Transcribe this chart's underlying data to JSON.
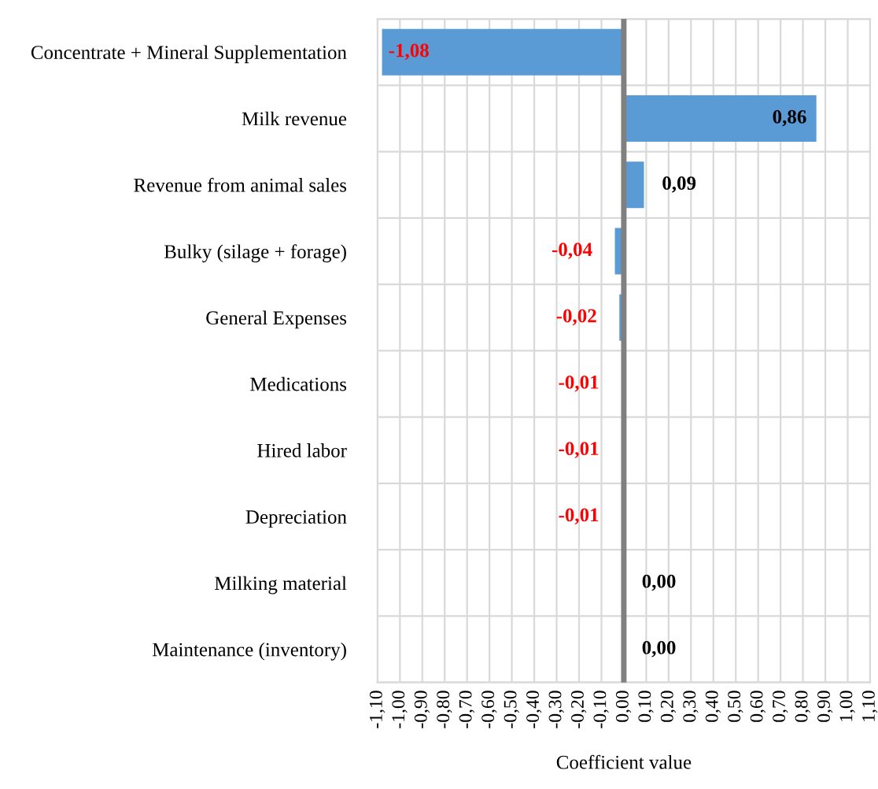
{
  "chart_data": {
    "type": "bar",
    "orientation": "horizontal",
    "xlabel": "Coefficient value",
    "categories": [
      "Concentrate + Mineral Supplementation",
      "Milk revenue",
      "Revenue from animal sales",
      "Bulky (silage + forage)",
      "General Expenses",
      "Medications",
      "Hired labor",
      "Depreciation",
      "Milking material",
      "Maintenance (inventory)"
    ],
    "values": [
      -1.08,
      0.86,
      0.09,
      -0.04,
      -0.02,
      -0.01,
      -0.01,
      -0.01,
      0.0,
      0.0
    ],
    "value_labels": [
      "-1,08",
      "0,86",
      "0,09",
      "-0,04",
      "-0,02",
      "-0,01",
      "-0,01",
      "-0,01",
      "0,00",
      "0,00"
    ],
    "color": "#5b9bd5",
    "xlim": [
      -1.1,
      1.1
    ],
    "xticks": [
      {
        "value": -1.1,
        "label": "-1,10"
      },
      {
        "value": -1.0,
        "label": "-1,00"
      },
      {
        "value": -0.9,
        "label": "-0,90"
      },
      {
        "value": -0.8,
        "label": "-0,80"
      },
      {
        "value": -0.7,
        "label": "-0,70"
      },
      {
        "value": -0.6,
        "label": "-0,60"
      },
      {
        "value": -0.5,
        "label": "-0,50"
      },
      {
        "value": -0.4,
        "label": "-0,40"
      },
      {
        "value": -0.3,
        "label": "-0,30"
      },
      {
        "value": -0.2,
        "label": "-0,20"
      },
      {
        "value": -0.1,
        "label": "-0,10"
      },
      {
        "value": 0.0,
        "label": "0,00"
      },
      {
        "value": 0.1,
        "label": "0,10"
      },
      {
        "value": 0.2,
        "label": "0,20"
      },
      {
        "value": 0.3,
        "label": "0,30"
      },
      {
        "value": 0.4,
        "label": "0,40"
      },
      {
        "value": 0.5,
        "label": "0,50"
      },
      {
        "value": 0.6,
        "label": "0,60"
      },
      {
        "value": 0.7,
        "label": "0,70"
      },
      {
        "value": 0.8,
        "label": "0,80"
      },
      {
        "value": 0.9,
        "label": "0,90"
      },
      {
        "value": 1.0,
        "label": "1,00"
      },
      {
        "value": 1.1,
        "label": "1,10"
      }
    ],
    "grid": true
  }
}
